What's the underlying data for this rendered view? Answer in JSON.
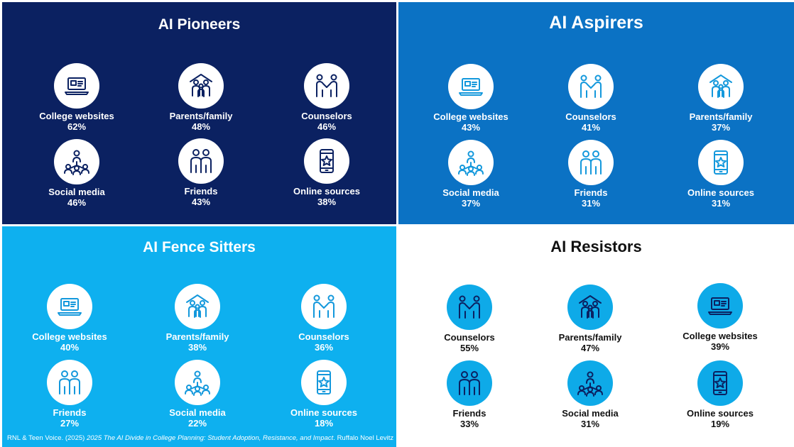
{
  "quadrants": [
    {
      "title": "AI Pioneers",
      "items": [
        {
          "label": "College websites",
          "value": "62%",
          "icon": "laptop-icon"
        },
        {
          "label": "Parents/family",
          "value": "48%",
          "icon": "family-house-icon"
        },
        {
          "label": "Counselors",
          "value": "46%",
          "icon": "handshake-icon"
        },
        {
          "label": "Social media",
          "value": "46%",
          "icon": "network-icon"
        },
        {
          "label": "Friends",
          "value": "43%",
          "icon": "friends-icon"
        },
        {
          "label": "Online sources",
          "value": "38%",
          "icon": "phone-star-icon"
        }
      ]
    },
    {
      "title": "AI Aspirers",
      "items": [
        {
          "label": "College websites",
          "value": "43%",
          "icon": "laptop-icon"
        },
        {
          "label": "Counselors",
          "value": "41%",
          "icon": "handshake-icon"
        },
        {
          "label": "Parents/family",
          "value": "37%",
          "icon": "family-house-icon"
        },
        {
          "label": "Social media",
          "value": "37%",
          "icon": "network-icon"
        },
        {
          "label": "Friends",
          "value": "31%",
          "icon": "friends-icon"
        },
        {
          "label": "Online sources",
          "value": "31%",
          "icon": "phone-star-icon"
        }
      ]
    },
    {
      "title": "AI Fence Sitters",
      "items": [
        {
          "label": "College websites",
          "value": "40%",
          "icon": "laptop-icon"
        },
        {
          "label": "Parents/family",
          "value": "38%",
          "icon": "family-house-icon"
        },
        {
          "label": "Counselors",
          "value": "36%",
          "icon": "handshake-icon"
        },
        {
          "label": "Friends",
          "value": "27%",
          "icon": "friends-icon"
        },
        {
          "label": "Social media",
          "value": "22%",
          "icon": "network-icon"
        },
        {
          "label": "Online sources",
          "value": "18%",
          "icon": "phone-star-icon"
        }
      ]
    },
    {
      "title": "AI Resistors",
      "items": [
        {
          "label": "Counselors",
          "value": "55%",
          "icon": "handshake-icon"
        },
        {
          "label": "Parents/family",
          "value": "47%",
          "icon": "family-house-icon"
        },
        {
          "label": "College websites",
          "value": "39%",
          "icon": "laptop-icon"
        },
        {
          "label": "Friends",
          "value": "33%",
          "icon": "friends-icon"
        },
        {
          "label": "Social media",
          "value": "31%",
          "icon": "network-icon"
        },
        {
          "label": "Online sources",
          "value": "19%",
          "icon": "phone-star-icon"
        }
      ]
    }
  ],
  "citation": {
    "prefix": "RNL & Teen Voice. (2025) ",
    "title": "2025 The AI Divide in College Planning: Student Adoption, Resistance, and Impact",
    "suffix": ". Ruffalo Noel Levitz."
  }
}
